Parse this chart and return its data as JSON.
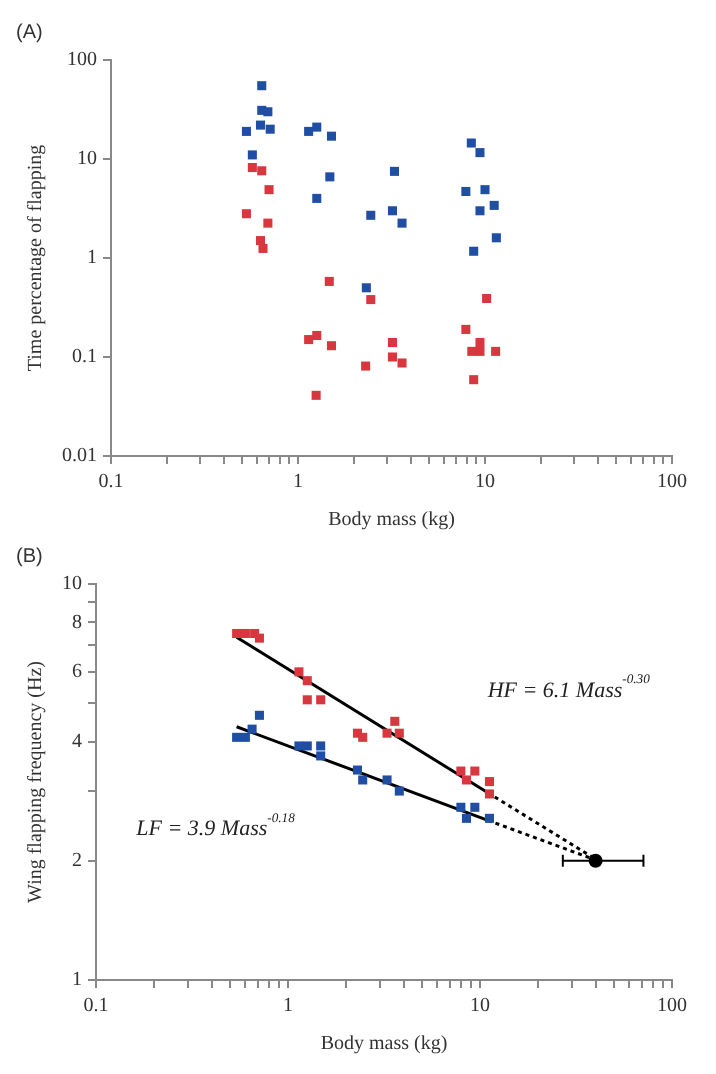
{
  "chart_data": [
    {
      "type": "scatter",
      "title": "(A)",
      "xlabel": "Body mass (kg)",
      "ylabel": "Time percentage of flapping",
      "log": "xy",
      "grid": false,
      "marker": "square",
      "xlim": [
        0.1,
        100
      ],
      "ylim": [
        0.01,
        100
      ],
      "xticks": [
        0.1,
        {
          "value": 0.2,
          "label": null
        },
        {
          "value": 0.3,
          "label": null
        },
        {
          "value": 0.4,
          "label": null
        },
        {
          "value": 0.5,
          "label": null
        },
        {
          "value": 0.6,
          "label": null
        },
        {
          "value": 0.7,
          "label": null
        },
        {
          "value": 0.8,
          "label": null
        },
        {
          "value": 0.9,
          "label": null
        },
        1,
        {
          "value": 2,
          "label": null
        },
        {
          "value": 3,
          "label": null
        },
        {
          "value": 4,
          "label": null
        },
        {
          "value": 5,
          "label": null
        },
        {
          "value": 6,
          "label": null
        },
        {
          "value": 7,
          "label": null
        },
        {
          "value": 8,
          "label": null
        },
        {
          "value": 9,
          "label": null
        },
        10,
        {
          "value": 20,
          "label": null
        },
        {
          "value": 30,
          "label": null
        },
        {
          "value": 40,
          "label": null
        },
        {
          "value": 50,
          "label": null
        },
        {
          "value": 60,
          "label": null
        },
        {
          "value": 70,
          "label": null
        },
        {
          "value": 80,
          "label": null
        },
        {
          "value": 90,
          "label": null
        },
        100
      ],
      "yticks": [
        0.01,
        0.1,
        1,
        10,
        100
      ],
      "series": [
        {
          "color": "#1f4ea3",
          "x": [
            0.53,
            0.64,
            0.64,
            0.69,
            0.63,
            0.71,
            0.57,
            1.14,
            1.26,
            1.51,
            1.48,
            1.26,
            2.45,
            2.32,
            3.28,
            3.2,
            3.6,
            8.45,
            9.4,
            7.9,
            10,
            9.4,
            11.2,
            8.7,
            11.5
          ],
          "values": [
            19,
            55,
            31,
            30,
            22,
            20,
            11,
            19,
            21,
            17,
            6.6,
            4.0,
            2.7,
            0.5,
            7.5,
            3.0,
            2.25,
            14.5,
            11.6,
            4.7,
            4.9,
            3.0,
            3.4,
            1.17,
            1.6
          ]
        },
        {
          "color": "#d8373f",
          "x": [
            0.57,
            0.64,
            0.7,
            0.53,
            0.69,
            0.63,
            0.65,
            1.47,
            1.14,
            1.26,
            1.51,
            1.25,
            2.45,
            2.3,
            3.2,
            3.2,
            3.6,
            7.9,
            10.2,
            9.4,
            8.5,
            9.4,
            11.4,
            8.7
          ],
          "values": [
            8.2,
            7.6,
            4.9,
            2.8,
            2.25,
            1.5,
            1.25,
            0.58,
            0.15,
            0.165,
            0.13,
            0.041,
            0.38,
            0.081,
            0.14,
            0.1,
            0.087,
            0.19,
            0.39,
            0.14,
            0.114,
            0.114,
            0.114,
            0.059
          ]
        }
      ]
    },
    {
      "type": "scatter",
      "title": "(B)",
      "xlabel": "Body mass (kg)",
      "ylabel": "Wing flapping frequency (Hz)",
      "log": "xy",
      "grid": false,
      "marker": "square",
      "xlim": [
        0.1,
        100
      ],
      "ylim": [
        1,
        10
      ],
      "xticks": [
        0.1,
        {
          "value": 0.2,
          "label": null
        },
        {
          "value": 0.3,
          "label": null
        },
        {
          "value": 0.4,
          "label": null
        },
        {
          "value": 0.5,
          "label": null
        },
        {
          "value": 0.6,
          "label": null
        },
        {
          "value": 0.7,
          "label": null
        },
        {
          "value": 0.8,
          "label": null
        },
        {
          "value": 0.9,
          "label": null
        },
        1,
        {
          "value": 2,
          "label": null
        },
        {
          "value": 3,
          "label": null
        },
        {
          "value": 4,
          "label": null
        },
        {
          "value": 5,
          "label": null
        },
        {
          "value": 6,
          "label": null
        },
        {
          "value": 7,
          "label": null
        },
        {
          "value": 8,
          "label": null
        },
        {
          "value": 9,
          "label": null
        },
        10,
        {
          "value": 20,
          "label": null
        },
        {
          "value": 30,
          "label": null
        },
        {
          "value": 40,
          "label": null
        },
        {
          "value": 50,
          "label": null
        },
        {
          "value": 60,
          "label": null
        },
        {
          "value": 70,
          "label": null
        },
        {
          "value": 80,
          "label": null
        },
        {
          "value": 90,
          "label": null
        },
        100
      ],
      "yticks": [
        1,
        2,
        {
          "value": 3,
          "label": null
        },
        4,
        {
          "value": 5,
          "label": null
        },
        6,
        {
          "value": 7,
          "label": null
        },
        8,
        {
          "value": 9,
          "label": null
        },
        10
      ],
      "annotations": [
        "HF = 6.1 Mass$^{-0.30}$",
        "LF = 3.9 Mass$^{-0.18}$"
      ],
      "series": [
        {
          "color": "#d8373f",
          "x": [
            0.54,
            0.6,
            0.67,
            0.71,
            1.14,
            1.26,
            1.26,
            1.48,
            2.3,
            2.45,
            3.28,
            3.6,
            3.8,
            7.95,
            8.5,
            9.4,
            11.2,
            11.2
          ],
          "values": [
            7.5,
            7.5,
            7.5,
            7.3,
            6.0,
            5.7,
            5.1,
            5.1,
            4.2,
            4.1,
            4.2,
            4.5,
            4.2,
            3.37,
            3.2,
            3.37,
            3.17,
            2.95
          ]
        },
        {
          "color": "#1f4ea3",
          "x": [
            0.54,
            0.6,
            0.65,
            0.71,
            1.14,
            1.26,
            1.48,
            1.48,
            2.3,
            2.45,
            3.28,
            3.8,
            7.95,
            8.5,
            9.4,
            11.2
          ],
          "values": [
            4.1,
            4.1,
            4.3,
            4.66,
            3.9,
            3.9,
            3.68,
            3.9,
            3.39,
            3.2,
            3.2,
            3.0,
            2.73,
            2.56,
            2.73,
            2.56
          ]
        },
        {
          "type": "line",
          "color": "#000000",
          "marker": "none",
          "line_style": "solid",
          "x": [
            0.54,
            11
          ],
          "values": [
            7.34,
            2.97
          ]
        },
        {
          "type": "line",
          "color": "#000000",
          "marker": "none",
          "line_style": "solid",
          "x": [
            0.54,
            11
          ],
          "values": [
            4.36,
            2.53
          ]
        },
        {
          "type": "line",
          "color": "#000000",
          "marker": "none",
          "line_style": "dotted",
          "x": [
            11,
            40
          ],
          "values": [
            2.97,
            2.02
          ]
        },
        {
          "type": "line",
          "color": "#000000",
          "marker": "none",
          "line_style": "dotted",
          "x": [
            11,
            40
          ],
          "values": [
            2.53,
            2.01
          ]
        },
        {
          "color": "#000000",
          "marker": "circle",
          "x": [
            40
          ],
          "values": [
            2.0
          ],
          "xerrors": [
            [
              27,
              71
            ]
          ]
        }
      ]
    }
  ]
}
